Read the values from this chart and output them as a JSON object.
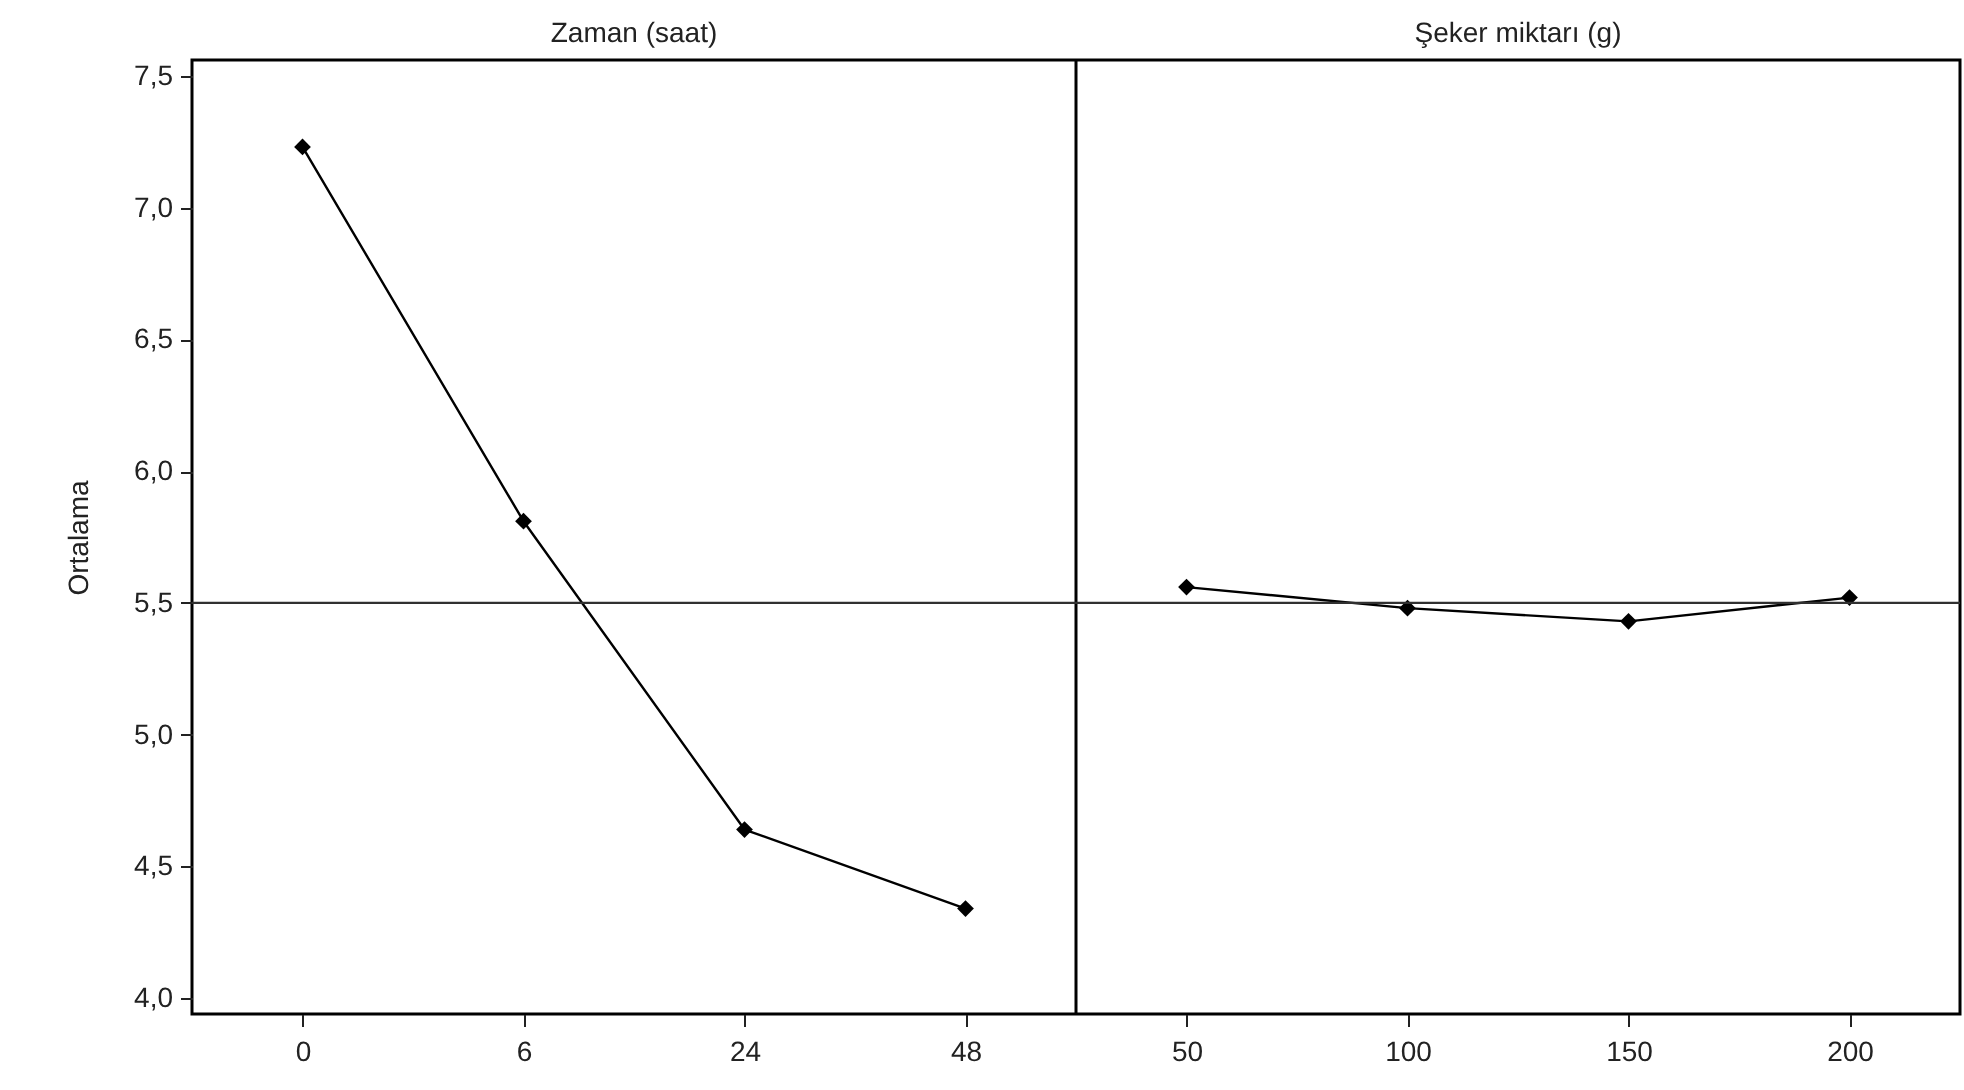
{
  "chart_data": [
    {
      "type": "line",
      "title": "Zaman (saat)",
      "ylabel": "Ortalama",
      "categories": [
        "0",
        "6",
        "24",
        "48"
      ],
      "values": [
        7.23,
        5.81,
        4.64,
        4.34
      ],
      "color": "#000000",
      "marker": "diamond",
      "line_style": "solid",
      "grid": false,
      "ylim": [
        3.94,
        7.56
      ],
      "yticks": [
        {
          "value": 4.0,
          "label": "4,0"
        },
        {
          "value": 4.5,
          "label": "4,5"
        },
        {
          "value": 5.0,
          "label": "5,0"
        },
        {
          "value": 5.5,
          "label": "5,5"
        },
        {
          "value": 6.0,
          "label": "6,0"
        },
        {
          "value": 6.5,
          "label": "6,5"
        },
        {
          "value": 7.0,
          "label": "7,0"
        },
        {
          "value": 7.5,
          "label": "7,5"
        }
      ],
      "ref_lines": [
        {
          "axis": "y",
          "value": 5.5,
          "color": "#303030"
        }
      ]
    },
    {
      "type": "line",
      "title": "Şeker miktarı (g)",
      "categories": [
        "50",
        "100",
        "150",
        "200"
      ],
      "values": [
        5.56,
        5.48,
        5.43,
        5.52
      ],
      "color": "#000000",
      "marker": "diamond",
      "line_style": "solid",
      "grid": false,
      "ylim": [
        3.94,
        7.56
      ],
      "tick_labels": "x",
      "ref_lines": [
        {
          "axis": "y",
          "value": 5.5,
          "color": "#303030"
        }
      ]
    }
  ]
}
